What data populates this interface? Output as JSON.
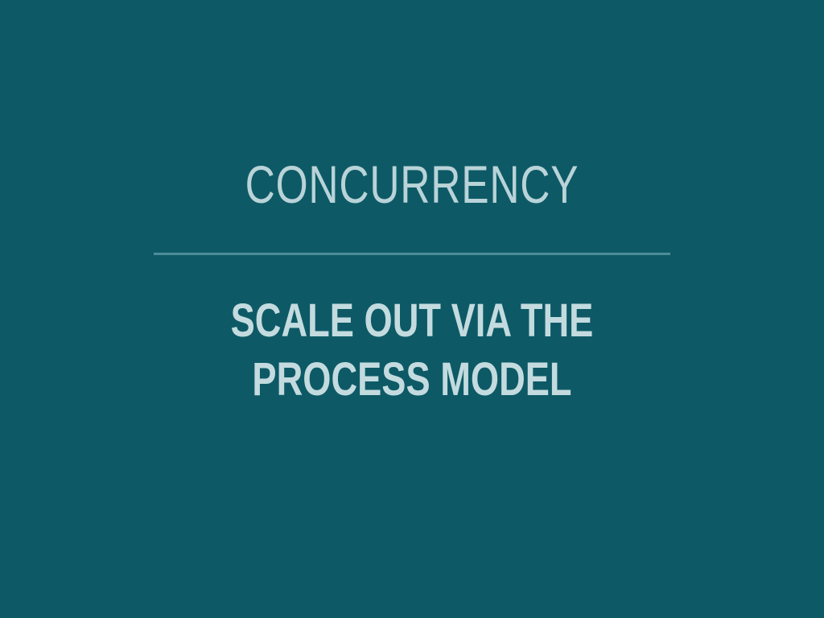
{
  "slide": {
    "title": "CONCURRENCY",
    "subtitle_lines": [
      "SCALE OUT VIA THE",
      "PROCESS MODEL"
    ]
  },
  "colors": {
    "background": "#0d5a66",
    "title_text": "#b9d3d8",
    "subtitle_text": "#c3dbdf",
    "divider": "#4d8c98"
  }
}
